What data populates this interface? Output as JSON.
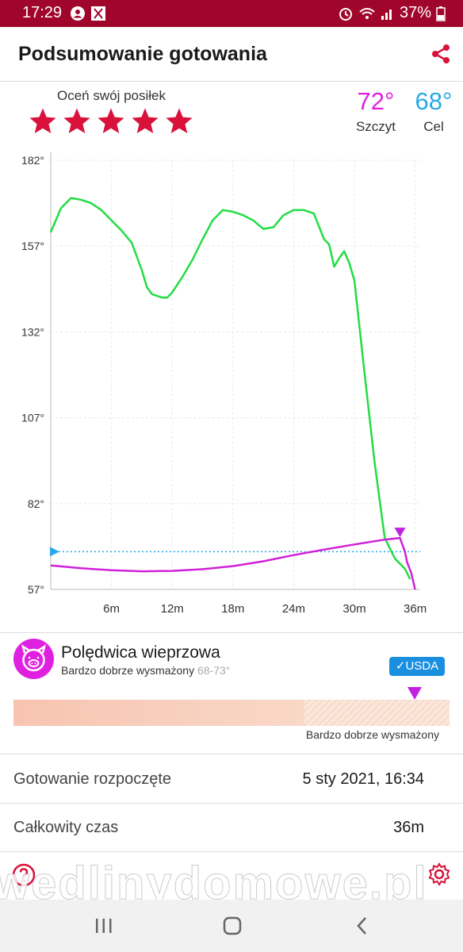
{
  "status": {
    "time": "17:29",
    "battery": "37%"
  },
  "header": {
    "title": "Podsumowanie gotowania"
  },
  "rating": {
    "label": "Oceń swój posiłek",
    "stars": 5
  },
  "temps": {
    "peak": {
      "value": "72°",
      "label": "Szczyt"
    },
    "target": {
      "value": "68°",
      "label": "Cel"
    }
  },
  "chart_data": {
    "type": "line",
    "yticks": [
      "182°",
      "157°",
      "132°",
      "107°",
      "82°",
      "57°"
    ],
    "xticks": [
      "6m",
      "12m",
      "18m",
      "24m",
      "30m",
      "36m"
    ],
    "ylim": [
      57,
      182
    ],
    "xlim": [
      0,
      36.5
    ],
    "grid": true,
    "target_line": 68,
    "series": [
      {
        "color": "#22dd44",
        "x": [
          0,
          1,
          2,
          3,
          4,
          5,
          6,
          7,
          8,
          9,
          9.5,
          10,
          11,
          11.5,
          12,
          13,
          14,
          15,
          16,
          17,
          18,
          19,
          20,
          21,
          22,
          23,
          24,
          25,
          26,
          27,
          27.5,
          28,
          28.5,
          29,
          29.5,
          30,
          31,
          32,
          33,
          34,
          35,
          35.5
        ],
        "y": [
          161,
          168,
          171,
          170.5,
          169.5,
          167.5,
          164.5,
          161.5,
          158,
          150,
          145,
          143,
          142,
          142,
          143.5,
          148,
          153,
          159,
          164.5,
          167.5,
          167,
          166,
          164.5,
          162,
          162.5,
          166,
          167.5,
          167.5,
          166.5,
          159,
          157.5,
          151,
          153.5,
          155.5,
          152,
          147,
          120,
          94,
          72,
          66,
          63,
          60
        ]
      },
      {
        "color": "#d020d8",
        "x": [
          0,
          3,
          6,
          9,
          12,
          15,
          18,
          21,
          24,
          27,
          30,
          33,
          34.5,
          35,
          35.2,
          35.6,
          36
        ],
        "y": [
          64,
          63.2,
          62.6,
          62.3,
          62.4,
          62.9,
          63.8,
          65.2,
          67,
          68.6,
          70.1,
          71.5,
          72,
          68,
          65,
          62,
          57
        ]
      }
    ]
  },
  "meat": {
    "name": "Polędwica wieprzowa",
    "doneness": "Bardzo dobrze wysmażony",
    "range": "68-73°",
    "badge": "✓USDA",
    "bar_label": "Bardzo dobrze wysmażony"
  },
  "info": {
    "started_label": "Gotowanie rozpoczęte",
    "started_value": "5 sty 2021, 16:34",
    "total_label": "Całkowity czas",
    "total_value": "36m"
  },
  "watermark": "wedlinydomowe.pl",
  "icons": {
    "share": "share-icon",
    "help": "help-icon",
    "settings": "gear-icon",
    "meat": "pig-icon"
  },
  "colors": {
    "status_bar": "#a0062b",
    "star": "#d8123a",
    "accent": "#e020e0"
  }
}
